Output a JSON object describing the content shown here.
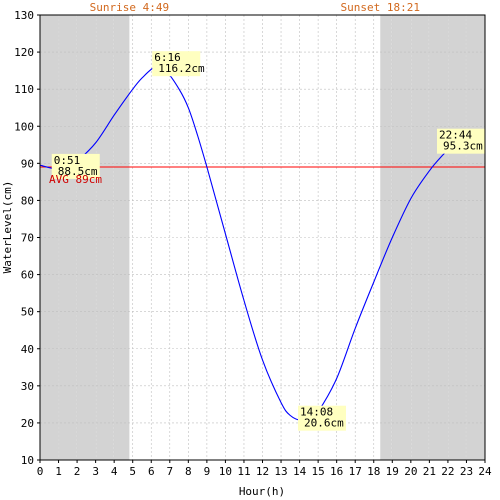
{
  "chart_data": {
    "type": "line",
    "xlabel": "Hour(h)",
    "ylabel": "WaterLevel(cm)",
    "xlim": [
      0,
      24
    ],
    "ylim": [
      10,
      130
    ],
    "x_ticks": [
      0,
      1,
      2,
      3,
      4,
      5,
      6,
      7,
      8,
      9,
      10,
      11,
      12,
      13,
      14,
      15,
      16,
      17,
      18,
      19,
      20,
      21,
      22,
      23,
      24
    ],
    "y_ticks": [
      10,
      20,
      30,
      40,
      50,
      60,
      70,
      80,
      90,
      100,
      110,
      120,
      130
    ],
    "grid": true,
    "sunrise": {
      "label": "Sunrise 4:49",
      "hour": 4.82
    },
    "sunset": {
      "label": "Sunset 18:21",
      "hour": 18.35
    },
    "night_color": "#d3d3d3",
    "line_color": "#0000ff",
    "average": {
      "label": "AVG 89cm",
      "value": 89,
      "color": "#ff0000"
    },
    "series": [
      {
        "x": [
          0,
          0.85,
          1.5,
          2,
          3,
          4,
          5,
          5.5,
          6.27,
          6.8,
          7.5,
          8,
          8.5,
          9,
          10,
          11,
          12,
          13,
          13.5,
          14.13,
          14.6,
          15,
          16,
          17,
          18,
          19,
          20,
          21,
          21.5,
          22,
          22.73,
          23.3,
          24
        ],
        "y": [
          89.5,
          88.5,
          88.8,
          90.5,
          95.5,
          103,
          110,
          113,
          116.2,
          114.9,
          110,
          105,
          97.5,
          89,
          71,
          53,
          37,
          25.5,
          22,
          20.6,
          21.2,
          23,
          32,
          45.5,
          58,
          70,
          80.5,
          88,
          91,
          93.5,
          95.3,
          95.3,
          93.7
        ]
      }
    ],
    "annotations": [
      {
        "time": "0:51",
        "value": "88.5cm",
        "x": 0.85,
        "y": 88.5
      },
      {
        "time": "6:16",
        "value": "116.2cm",
        "x": 6.27,
        "y": 116.2
      },
      {
        "time": "14:08",
        "value": "20.6cm",
        "x": 14.13,
        "y": 20.6
      },
      {
        "time": "22:44",
        "value": "95.3cm",
        "x": 22.73,
        "y": 95.3
      }
    ]
  }
}
